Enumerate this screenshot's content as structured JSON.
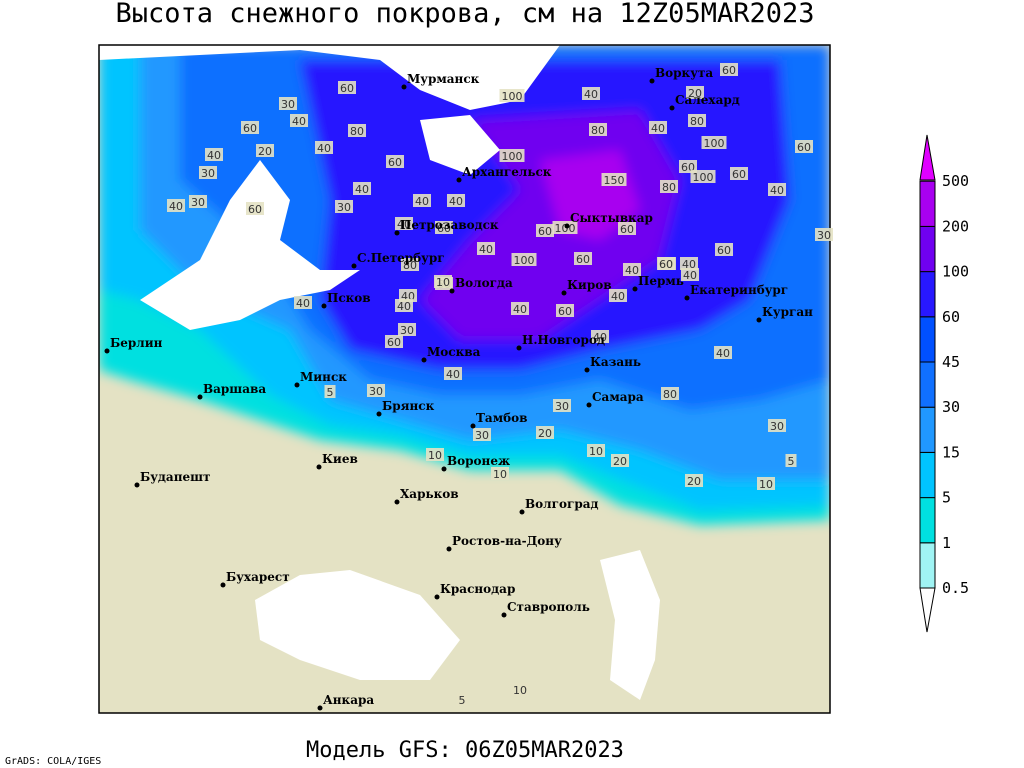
{
  "header": {
    "title": "Высота снежного покрова, см на 12Z05MAR2023"
  },
  "footer": {
    "model": "Модель GFS: 06Z05MAR2023",
    "credit": "GrADS: COLA/IGES"
  },
  "legend": {
    "levels": [
      0.5,
      1,
      5,
      15,
      30,
      45,
      60,
      100,
      200,
      500
    ],
    "colors": [
      "#ffffff",
      "#a0f4f4",
      "#00e0e0",
      "#00c4ff",
      "#2098ff",
      "#1070ff",
      "#0050ff",
      "#2818ff",
      "#7000f0",
      "#a800f0",
      "#e000ff"
    ]
  },
  "cities": [
    "Мурманск",
    "Воркута",
    "Салехард",
    "Архангельск",
    "Сыктывкар",
    "Петрозаводск",
    "С.Петербург",
    "Вологда",
    "Киров",
    "Пермь",
    "Екатеринбург",
    "Курган",
    "Псков",
    "Берлин",
    "Москва",
    "Н.Новгород",
    "Казань",
    "Минск",
    "Варшава",
    "Самара",
    "Брянск",
    "Тамбов",
    "Воронеж",
    "Киев",
    "Харьков",
    "Волгоград",
    "Будапешт",
    "Ростов-на-Дону",
    "Бухарест",
    "Краснодар",
    "Ставрополь",
    "Анкара"
  ],
  "contour_labels": [
    60,
    30,
    60,
    40,
    20,
    40,
    30,
    30,
    40,
    60,
    60,
    80,
    40,
    40,
    30,
    40,
    40,
    40,
    60,
    80,
    100,
    80,
    100,
    60,
    150,
    80,
    100,
    60,
    60,
    60,
    40,
    100,
    60,
    40,
    20,
    80,
    60,
    40,
    60,
    30,
    60,
    60,
    40,
    100,
    40,
    60,
    40,
    40,
    30,
    30,
    60,
    40,
    30,
    20,
    20,
    10,
    30,
    10,
    20,
    10,
    5,
    40,
    5,
    30,
    10,
    10,
    5,
    100,
    40,
    40,
    60,
    40,
    40,
    60,
    80,
    40,
    40,
    10
  ]
}
